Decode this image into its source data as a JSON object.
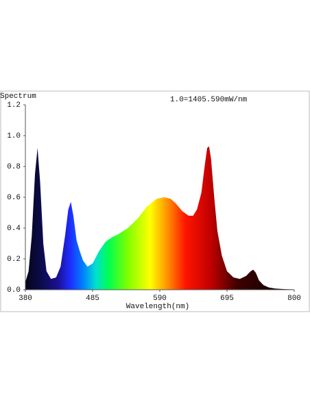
{
  "chart_data": {
    "type": "area",
    "y_label": "Spectrum",
    "annotation": "1.0=1405.590mW/nm",
    "x_label": "Wavelength(nm)",
    "x": [
      380,
      385,
      390,
      395,
      399,
      403,
      408,
      413,
      420,
      428,
      435,
      442,
      447,
      451,
      455,
      460,
      465,
      470,
      477,
      485,
      495,
      505,
      515,
      525,
      540,
      555,
      570,
      585,
      597,
      607,
      615,
      625,
      635,
      642,
      648,
      655,
      660,
      664,
      667,
      670,
      675,
      680,
      687,
      695,
      705,
      715,
      725,
      732,
      736,
      740,
      745,
      752,
      760,
      770,
      785,
      800
    ],
    "values": [
      0.05,
      0.12,
      0.35,
      0.75,
      0.92,
      0.7,
      0.3,
      0.12,
      0.07,
      0.08,
      0.15,
      0.35,
      0.52,
      0.57,
      0.48,
      0.32,
      0.25,
      0.19,
      0.15,
      0.17,
      0.25,
      0.31,
      0.34,
      0.36,
      0.4,
      0.46,
      0.54,
      0.59,
      0.6,
      0.59,
      0.56,
      0.51,
      0.48,
      0.48,
      0.52,
      0.63,
      0.8,
      0.92,
      0.93,
      0.85,
      0.6,
      0.38,
      0.22,
      0.12,
      0.08,
      0.07,
      0.09,
      0.12,
      0.13,
      0.11,
      0.06,
      0.03,
      0.015,
      0.008,
      0.004,
      0.002
    ],
    "xlim": [
      380,
      800
    ],
    "xticks": [
      380,
      485,
      590,
      695,
      800
    ],
    "ylim": [
      0,
      1.2
    ],
    "yticks": [
      {
        "value": 0,
        "label": "0.0"
      },
      0.2,
      0.4,
      0.6,
      0.8,
      {
        "value": 1,
        "label": "1.0"
      },
      1.2
    ],
    "grid": false
  }
}
